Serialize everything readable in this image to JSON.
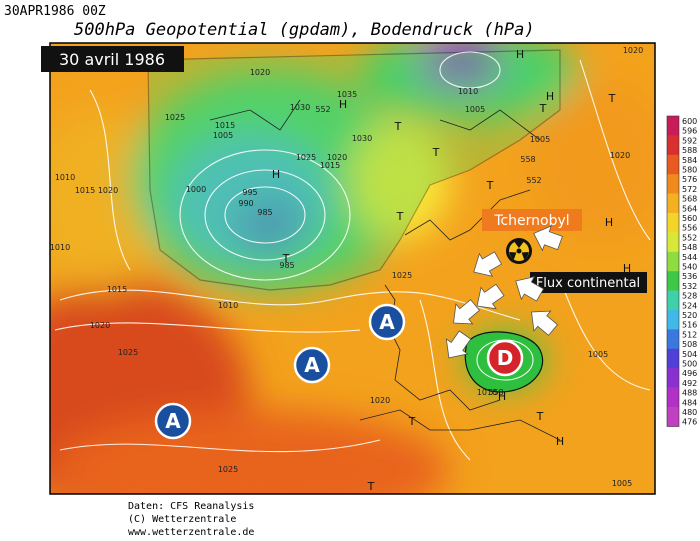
{
  "header": {
    "timestamp": "30APR1986 00Z",
    "title": "500hPa Geopotential (gpdam), Bodendruck (hPa)"
  },
  "map": {
    "date_label": "30 avril 1986",
    "annotations": {
      "source": "Tchernobyl",
      "flow": "Flux continental"
    },
    "high_centers": [
      "A",
      "A",
      "A"
    ],
    "low_center": "D",
    "isobar_labels": [
      "1020",
      "1025",
      "1015",
      "1010",
      "1005",
      "1000",
      "995",
      "990",
      "985",
      "985",
      "1030",
      "1035",
      "1030",
      "1025",
      "1020",
      "1015",
      "1010",
      "1005",
      "1010",
      "1015",
      "1020",
      "1025",
      "1020",
      "1025",
      "1005",
      "1010",
      "1020",
      "1020",
      "1005",
      "1025",
      "1010",
      "1015",
      "1020",
      "552",
      "558",
      "552",
      "558",
      "1005"
    ],
    "pressure_symbols": [
      "H",
      "H",
      "T",
      "T",
      "H",
      "H",
      "T",
      "T",
      "T",
      "H",
      "T",
      "H",
      "T",
      "T",
      "H",
      "T",
      "H",
      "T",
      "H"
    ]
  },
  "colorbar": {
    "labels": [
      "600",
      "596",
      "592",
      "588",
      "584",
      "580",
      "576",
      "572",
      "568",
      "564",
      "560",
      "556",
      "552",
      "548",
      "544",
      "540",
      "536",
      "532",
      "528",
      "524",
      "520",
      "516",
      "512",
      "508",
      "504",
      "500",
      "496",
      "492",
      "488",
      "484",
      "480",
      "476"
    ]
  },
  "footer": {
    "lines": [
      "Daten: CFS Reanalysis",
      "(C) Wetterzentrale",
      "www.wetterzentrale.de"
    ]
  }
}
